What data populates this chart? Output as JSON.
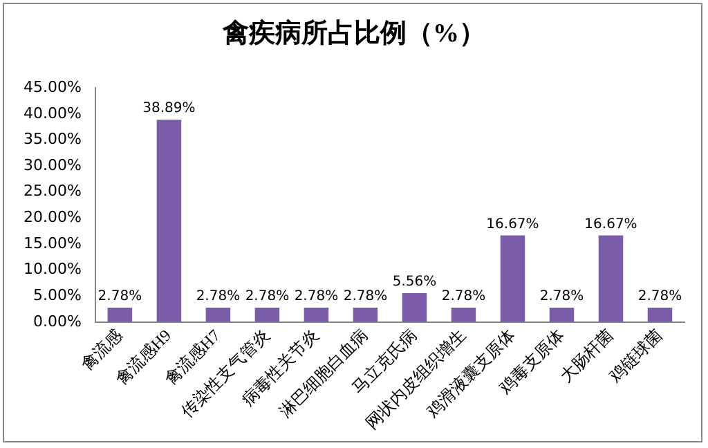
{
  "chart_data": {
    "type": "bar",
    "title": "禽疾病所占比例（%）",
    "categories": [
      "禽流感",
      "禽流感H9",
      "禽流感H7",
      "传染性支气管炎",
      "病毒性关节炎",
      "淋巴细胞白血病",
      "马立克氏病",
      "网状内皮组织增生",
      "鸡滑液囊支原体",
      "鸡毒支原体",
      "大肠杆菌",
      "鸡链球菌"
    ],
    "values": [
      2.78,
      38.89,
      2.78,
      2.78,
      2.78,
      2.78,
      5.56,
      2.78,
      16.67,
      2.78,
      16.67,
      2.78
    ],
    "value_labels": [
      "2.78%",
      "38.89%",
      "2.78%",
      "2.78%",
      "2.78%",
      "2.78%",
      "5.56%",
      "2.78%",
      "16.67%",
      "2.78%",
      "16.67%",
      "2.78%"
    ],
    "color": "#7a5ca8",
    "ylim": [
      0,
      45
    ],
    "yticks": [
      {
        "value": 0,
        "label": "0.00%"
      },
      {
        "value": 5,
        "label": "5.00%"
      },
      {
        "value": 10,
        "label": "10.00%"
      },
      {
        "value": 15,
        "label": "15.00%"
      },
      {
        "value": 20,
        "label": "20.00%"
      },
      {
        "value": 25,
        "label": "25.00%"
      },
      {
        "value": 30,
        "label": "30.00%"
      },
      {
        "value": 35,
        "label": "35.00%"
      },
      {
        "value": 40,
        "label": "40.00%"
      },
      {
        "value": 45,
        "label": "45.00%"
      }
    ],
    "grid": false,
    "legend": false
  }
}
